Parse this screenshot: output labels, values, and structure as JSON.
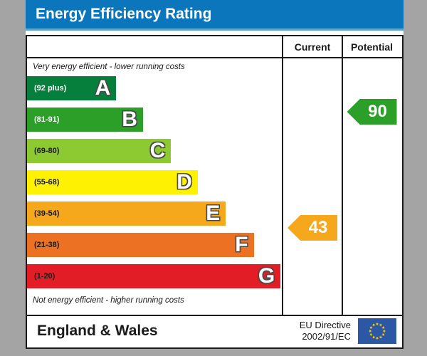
{
  "title": "Energy Efficiency Rating",
  "columns": {
    "current": "Current",
    "potential": "Potential"
  },
  "top_note": "Very energy efficient - lower running costs",
  "bottom_note": "Not energy efficient - higher running costs",
  "bands": [
    {
      "letter": "A",
      "range": "(92 plus)",
      "color": "#067f3c",
      "text_color": "#ffffff",
      "width_pct": 35
    },
    {
      "letter": "B",
      "range": "(81-91)",
      "color": "#2c9f29",
      "text_color": "#ffffff",
      "width_pct": 45.5
    },
    {
      "letter": "C",
      "range": "(69-80)",
      "color": "#8dca32",
      "text_color": "#1a1a1a",
      "width_pct": 56.5
    },
    {
      "letter": "D",
      "range": "(55-68)",
      "color": "#fef102",
      "text_color": "#1a1a1a",
      "width_pct": 67
    },
    {
      "letter": "E",
      "range": "(39-54)",
      "color": "#f6a81c",
      "text_color": "#1a1a1a",
      "width_pct": 78
    },
    {
      "letter": "F",
      "range": "(21-38)",
      "color": "#ed7123",
      "text_color": "#1a1a1a",
      "width_pct": 89
    },
    {
      "letter": "G",
      "range": "(1-20)",
      "color": "#e21d25",
      "text_color": "#1a1a1a",
      "width_pct": 99.5
    }
  ],
  "current": {
    "value": "43",
    "color": "#f6a81c",
    "band": "E"
  },
  "potential": {
    "value": "90",
    "color": "#2c9f29",
    "band": "B"
  },
  "footer": {
    "region": "England & Wales",
    "directive_line1": "EU Directive",
    "directive_line2": "2002/91/EC"
  },
  "colors": {
    "header_blue": "#0c76bd",
    "border": "#1a1a1a",
    "background_gray": "#a4a4a4",
    "eu_flag_blue": "#2b57a5",
    "eu_star_yellow": "#ffcc00"
  },
  "chart_data": {
    "type": "bar",
    "title": "Energy Efficiency Rating",
    "categories": [
      "A",
      "B",
      "C",
      "D",
      "E",
      "F",
      "G"
    ],
    "band_ranges": [
      "92 plus",
      "81-91",
      "69-80",
      "55-68",
      "39-54",
      "21-38",
      "1-20"
    ],
    "band_widths_pct": [
      35,
      45.5,
      56.5,
      67,
      78,
      89,
      99.5
    ],
    "current_rating": 43,
    "current_band": "E",
    "potential_rating": 90,
    "potential_band": "B",
    "top_annotation": "Very energy efficient - lower running costs",
    "bottom_annotation": "Not energy efficient - higher running costs",
    "footer_left": "England & Wales",
    "footer_right": "EU Directive 2002/91/EC"
  }
}
